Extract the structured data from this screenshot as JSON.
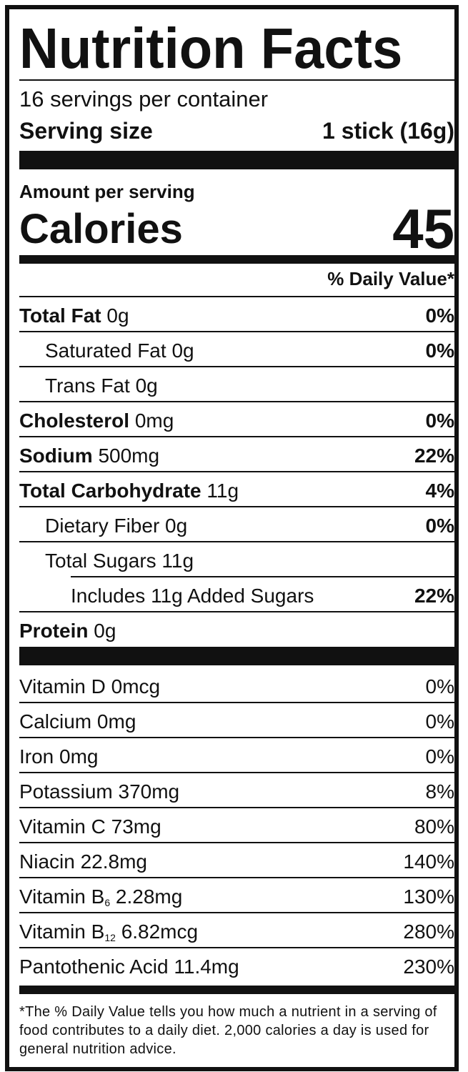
{
  "title": "Nutrition Facts",
  "servings_per_container": "16 servings per container",
  "serving_size_label": "Serving size",
  "serving_size_value": "1 stick (16g)",
  "amount_per_serving": "Amount per serving",
  "calories_label": "Calories",
  "calories_value": "45",
  "daily_value_header": "% Daily Value*",
  "nutrients": [
    {
      "name": "Total Fat",
      "amount": "0g",
      "dv": "0%"
    },
    {
      "name": "Saturated Fat",
      "amount": "0g",
      "dv": "0%"
    },
    {
      "name": "Trans Fat",
      "amount": "0g",
      "dv": ""
    },
    {
      "name": "Cholesterol",
      "amount": "0mg",
      "dv": "0%"
    },
    {
      "name": "Sodium",
      "amount": "500mg",
      "dv": "22%"
    },
    {
      "name": "Total Carbohydrate",
      "amount": "11g",
      "dv": "4%"
    },
    {
      "name": "Dietary Fiber",
      "amount": "0g",
      "dv": "0%"
    },
    {
      "name": "Total Sugars",
      "amount": "11g",
      "dv": ""
    },
    {
      "name": "Includes 11g Added Sugars",
      "amount": "",
      "dv": "22%"
    },
    {
      "name": "Protein",
      "amount": "0g",
      "dv": ""
    }
  ],
  "vitamins": [
    {
      "name": "Vitamin D",
      "sub": "",
      "amount": "0mcg",
      "dv": "0%"
    },
    {
      "name": "Calcium",
      "sub": "",
      "amount": "0mg",
      "dv": "0%"
    },
    {
      "name": "Iron",
      "sub": "",
      "amount": "0mg",
      "dv": "0%"
    },
    {
      "name": "Potassium",
      "sub": "",
      "amount": "370mg",
      "dv": "8%"
    },
    {
      "name": "Vitamin C",
      "sub": "",
      "amount": "73mg",
      "dv": "80%"
    },
    {
      "name": "Niacin",
      "sub": "",
      "amount": "22.8mg",
      "dv": "140%"
    },
    {
      "name": "Vitamin B",
      "sub": "6",
      "amount": "2.28mg",
      "dv": "130%"
    },
    {
      "name": "Vitamin B",
      "sub": "12",
      "amount": "6.82mcg",
      "dv": "280%"
    },
    {
      "name": "Pantothenic Acid",
      "sub": "",
      "amount": "11.4mg",
      "dv": "230%"
    }
  ],
  "footnote": "*The % Daily Value tells you how much a nutrient in a serving of food contributes to a daily diet. 2,000 calories a day is used for general nutrition advice."
}
